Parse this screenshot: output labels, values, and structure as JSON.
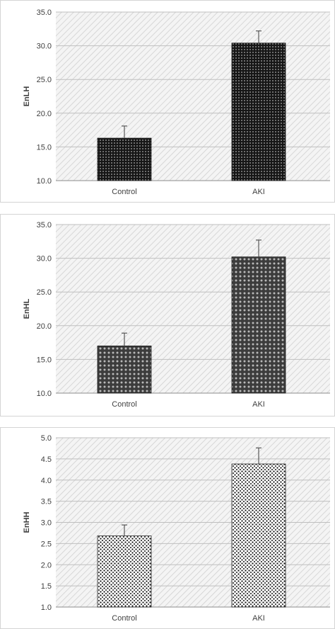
{
  "chart_data": [
    {
      "type": "bar",
      "ylabel": "EnLH",
      "categories": [
        "Control",
        "AKI"
      ],
      "values": [
        16.3,
        30.4
      ],
      "errors": [
        1.8,
        1.8
      ],
      "ylim": [
        10.0,
        35.0
      ],
      "yticks": [
        "10.0",
        "15.0",
        "20.0",
        "25.0",
        "30.0",
        "35.0"
      ],
      "grid": true,
      "legend": "none"
    },
    {
      "type": "bar",
      "ylabel": "EnHL",
      "categories": [
        "Control",
        "AKI"
      ],
      "values": [
        17.0,
        30.2
      ],
      "errors": [
        1.9,
        2.5
      ],
      "ylim": [
        10.0,
        35.0
      ],
      "yticks": [
        "10.0",
        "15.0",
        "20.0",
        "25.0",
        "30.0",
        "35.0"
      ],
      "grid": true,
      "legend": "none"
    },
    {
      "type": "bar",
      "ylabel": "EnHH",
      "categories": [
        "Control",
        "AKI"
      ],
      "values": [
        2.68,
        4.38
      ],
      "errors": [
        0.26,
        0.38
      ],
      "ylim": [
        1.0,
        5.0
      ],
      "yticks": [
        "1.0",
        "1.5",
        "2.0",
        "2.5",
        "3.0",
        "3.5",
        "4.0",
        "4.5",
        "5.0"
      ],
      "grid": true,
      "legend": "none"
    }
  ],
  "colors": {
    "plot_bg": "#f2f2f2",
    "hatch": "#cfcfcf",
    "gridline": "#bfbfbf",
    "axis": "#8c8c8c",
    "bar_dark": "#1a1a1a",
    "bar_mid": "#4a4a4a",
    "error_bar": "#595959"
  }
}
